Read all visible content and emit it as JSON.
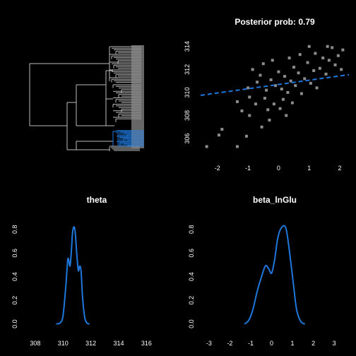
{
  "chart_data": [
    {
      "type": "tree",
      "title": "",
      "highlight_color": "#1e78dc",
      "line_color": "#bdbdbd"
    },
    {
      "type": "scatter",
      "title": "Posterior prob: 0.79",
      "xlabel": "",
      "ylabel": "",
      "xlim": [
        -2.55,
        2.3
      ],
      "ylim": [
        304.9,
        314.6
      ],
      "xticks": [
        -2,
        -1,
        0,
        1,
        2
      ],
      "yticks": [
        306,
        308,
        310,
        312,
        314
      ],
      "point_color": "#8c8c8c",
      "fit_line": {
        "x": [
          -2.55,
          2.3
        ],
        "y": [
          309.75,
          311.55
        ],
        "color": "#1e78dc",
        "style": "dashed"
      },
      "points": [
        {
          "x": -2.35,
          "y": 305.3
        },
        {
          "x": -1.35,
          "y": 305.3
        },
        {
          "x": -1.95,
          "y": 306.3
        },
        {
          "x": -1.85,
          "y": 306.8
        },
        {
          "x": -1.05,
          "y": 306.2
        },
        {
          "x": -0.55,
          "y": 307.0
        },
        {
          "x": -1.2,
          "y": 308.4
        },
        {
          "x": -0.95,
          "y": 308.0
        },
        {
          "x": -0.75,
          "y": 309.0
        },
        {
          "x": -0.45,
          "y": 309.5
        },
        {
          "x": -0.35,
          "y": 308.5
        },
        {
          "x": -0.15,
          "y": 309.0
        },
        {
          "x": 0.05,
          "y": 308.6
        },
        {
          "x": 0.15,
          "y": 309.4
        },
        {
          "x": -1.0,
          "y": 310.4
        },
        {
          "x": -0.7,
          "y": 310.9
        },
        {
          "x": -0.6,
          "y": 311.5
        },
        {
          "x": -0.4,
          "y": 310.2
        },
        {
          "x": -0.25,
          "y": 311.1
        },
        {
          "x": -0.1,
          "y": 310.6
        },
        {
          "x": 0.0,
          "y": 311.8
        },
        {
          "x": 0.1,
          "y": 310.3
        },
        {
          "x": 0.2,
          "y": 311.4
        },
        {
          "x": 0.3,
          "y": 310.0
        },
        {
          "x": 0.4,
          "y": 311.0
        },
        {
          "x": 0.5,
          "y": 312.2
        },
        {
          "x": 0.55,
          "y": 310.6
        },
        {
          "x": 0.65,
          "y": 311.7
        },
        {
          "x": 0.75,
          "y": 309.9
        },
        {
          "x": 0.85,
          "y": 311.2
        },
        {
          "x": 0.95,
          "y": 312.6
        },
        {
          "x": 1.05,
          "y": 310.8
        },
        {
          "x": 1.15,
          "y": 311.9
        },
        {
          "x": 1.2,
          "y": 313.4
        },
        {
          "x": 1.35,
          "y": 312.1
        },
        {
          "x": 1.45,
          "y": 313.0
        },
        {
          "x": 1.55,
          "y": 311.6
        },
        {
          "x": 1.65,
          "y": 312.8
        },
        {
          "x": 1.75,
          "y": 313.9
        },
        {
          "x": 1.85,
          "y": 312.4
        },
        {
          "x": 1.95,
          "y": 313.2
        },
        {
          "x": 2.05,
          "y": 312.0
        },
        {
          "x": 2.1,
          "y": 313.7
        },
        {
          "x": -0.85,
          "y": 312.0
        },
        {
          "x": -0.5,
          "y": 312.5
        },
        {
          "x": -0.2,
          "y": 312.8
        },
        {
          "x": 0.35,
          "y": 313.0
        },
        {
          "x": 0.7,
          "y": 313.3
        },
        {
          "x": 1.0,
          "y": 314.0
        },
        {
          "x": 1.6,
          "y": 314.0
        },
        {
          "x": -1.35,
          "y": 309.2
        },
        {
          "x": -0.95,
          "y": 309.6
        },
        {
          "x": 0.45,
          "y": 309.1
        },
        {
          "x": 1.25,
          "y": 310.4
        },
        {
          "x": -0.3,
          "y": 307.6
        },
        {
          "x": 0.25,
          "y": 308.0
        }
      ]
    },
    {
      "type": "line",
      "title": "theta",
      "xlabel": "",
      "ylabel": "",
      "xlim": [
        307.5,
        317.5
      ],
      "ylim": [
        -0.02,
        0.84
      ],
      "xticks": [
        308,
        310,
        312,
        314,
        316
      ],
      "yticks": [
        0.0,
        0.2,
        0.4,
        0.6,
        0.8
      ],
      "color": "#1e78dc",
      "x": [
        309.5,
        309.8,
        310.0,
        310.2,
        310.35,
        310.5,
        310.6,
        310.7,
        310.85,
        311.0,
        311.1,
        311.2,
        311.3,
        311.4,
        311.55,
        311.7,
        311.9
      ],
      "y": [
        0.0,
        0.01,
        0.07,
        0.32,
        0.55,
        0.49,
        0.62,
        0.79,
        0.8,
        0.57,
        0.45,
        0.49,
        0.44,
        0.23,
        0.06,
        0.01,
        0.0
      ]
    },
    {
      "type": "line",
      "title": "beta_lnGlu",
      "xlabel": "",
      "ylabel": "",
      "xlim": [
        -3.2,
        3.3
      ],
      "ylim": [
        -0.02,
        0.84
      ],
      "xticks": [
        -3,
        -2,
        -1,
        0,
        1,
        2,
        3
      ],
      "yticks": [
        0.0,
        0.2,
        0.4,
        0.6,
        0.8
      ],
      "color": "#1e78dc",
      "x": [
        -1.3,
        -1.1,
        -0.9,
        -0.7,
        -0.5,
        -0.3,
        -0.15,
        0.0,
        0.15,
        0.3,
        0.5,
        0.7,
        0.9,
        1.05,
        1.2,
        1.4,
        1.6
      ],
      "y": [
        0.0,
        0.03,
        0.12,
        0.27,
        0.39,
        0.49,
        0.47,
        0.43,
        0.55,
        0.73,
        0.82,
        0.8,
        0.55,
        0.33,
        0.12,
        0.02,
        0.0
      ]
    }
  ]
}
